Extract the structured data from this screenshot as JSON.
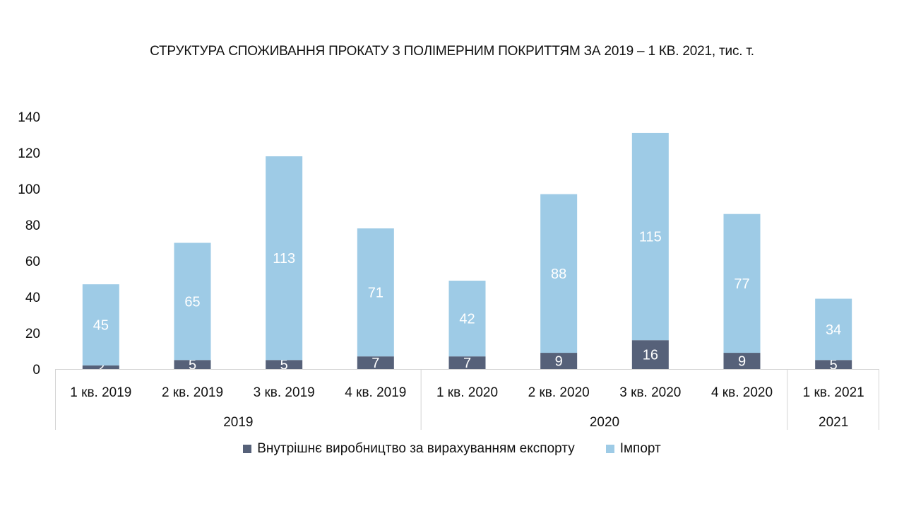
{
  "chart_data": {
    "type": "bar",
    "stacked": true,
    "title": "СТРУКТУРА СПОЖИВАННЯ ПРОКАТУ З ПОЛІМЕРНИМ ПОКРИТТЯМ ЗА 2019 – 1 КВ. 2021, тис. т.",
    "categories": [
      "1 кв. 2019",
      "2 кв. 2019",
      "3 кв. 2019",
      "4 кв. 2019",
      "1 кв. 2020",
      "2 кв. 2020",
      "3 кв. 2020",
      "4 кв. 2020",
      "1 кв. 2021"
    ],
    "groups": [
      {
        "label": "2019",
        "span": 4
      },
      {
        "label": "2020",
        "span": 4
      },
      {
        "label": "2021",
        "span": 1
      }
    ],
    "series": [
      {
        "name": "Внутрішнє виробництво за вирахуванням експорту",
        "color": "#566179",
        "values": [
          2,
          5,
          5,
          7,
          7,
          9,
          16,
          9,
          5
        ]
      },
      {
        "name": "Імпорт",
        "color": "#9ecbe6",
        "values": [
          45,
          65,
          113,
          71,
          42,
          88,
          115,
          77,
          34
        ]
      }
    ],
    "ylim": [
      0,
      140
    ],
    "yticks": [
      0,
      20,
      40,
      60,
      80,
      100,
      120,
      140
    ],
    "grid": false,
    "legend": "bottom",
    "data_label_color": "#ffffff"
  }
}
